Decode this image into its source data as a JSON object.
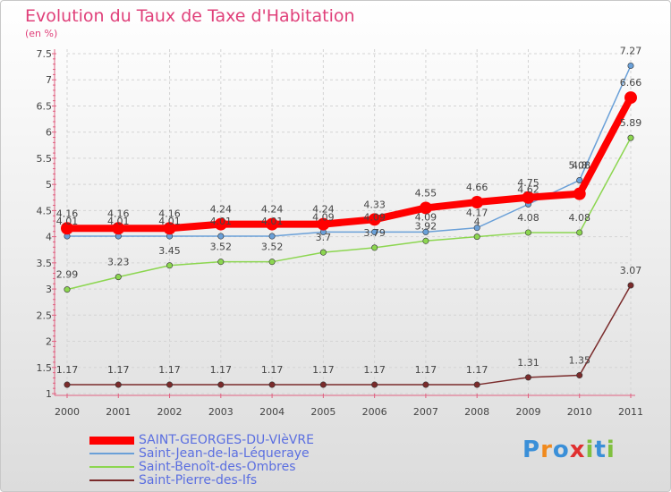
{
  "chart_data": {
    "type": "line",
    "title": "Evolution du Taux de Taxe d'Habitation",
    "subtitle": "(en %)",
    "x": [
      "2000",
      "2001",
      "2002",
      "2003",
      "2004",
      "2005",
      "2006",
      "2007",
      "2008",
      "2009",
      "2010",
      "2011"
    ],
    "ylim": [
      1,
      7.5
    ],
    "yticks": [
      "1",
      "1.5",
      "2",
      "2.5",
      "3",
      "3.5",
      "4",
      "4.5",
      "5",
      "5.5",
      "6",
      "6.5",
      "7",
      "7.5"
    ],
    "grid": true,
    "legend": "bottom-left",
    "series": [
      {
        "name": "SAINT-GEORGES-DU-VIèVRE",
        "color": "#ff0000",
        "values": [
          4.16,
          4.16,
          4.16,
          4.24,
          4.24,
          4.24,
          4.33,
          4.55,
          4.66,
          4.75,
          4.82,
          6.66
        ],
        "labels": [
          "4.16",
          "4.16",
          "4.16",
          "4.24",
          "4.24",
          "4.24",
          "4.33",
          "4.55",
          "4.66",
          "4.75",
          "",
          "6.66"
        ]
      },
      {
        "name": "Saint-Jean-de-la-Léqueraye",
        "color": "#6aa0d8",
        "values": [
          4.01,
          4.01,
          4.01,
          4.01,
          4.01,
          4.09,
          4.09,
          4.09,
          4.17,
          4.62,
          5.08,
          7.27
        ],
        "labels": [
          "4.01",
          "4.01",
          "4.01",
          "4.01",
          "4.01",
          "4.09",
          "4.09",
          "4.09",
          "4.17",
          "4.62",
          "5.08",
          "7.27"
        ]
      },
      {
        "name": "Saint-Benoît-des-Ombres",
        "color": "#8cd650",
        "values": [
          2.99,
          3.23,
          3.45,
          3.52,
          3.52,
          3.7,
          3.79,
          3.92,
          4,
          4.08,
          4.08,
          5.89
        ],
        "labels": [
          "2.99",
          "3.23",
          "3.45",
          "3.52",
          "3.52",
          "3.7",
          "3.79",
          "3.92",
          "4",
          "4.08",
          "4.08",
          "5.89"
        ]
      },
      {
        "name": "Saint-Pierre-des-Ifs",
        "color": "#7a2b2b",
        "values": [
          1.17,
          1.17,
          1.17,
          1.17,
          1.17,
          1.17,
          1.17,
          1.17,
          1.17,
          1.31,
          1.35,
          3.07
        ],
        "labels": [
          "1.17",
          "1.17",
          "1.17",
          "1.17",
          "1.17",
          "1.17",
          "1.17",
          "1.17",
          "1.17",
          "1.31",
          "1.35",
          "3.07"
        ]
      }
    ],
    "extra_labels": [
      {
        "series": 1,
        "index": 10,
        "text": "4.8"
      }
    ]
  },
  "logo": {
    "text": "Proxiti",
    "letters": [
      "P",
      "r",
      "o",
      "x",
      "i",
      "t",
      "i"
    ],
    "colors": [
      "#3a8fd8",
      "#f08a1e",
      "#3a8fd8",
      "#e03030",
      "#80c040",
      "#3a8fd8",
      "#80c040"
    ]
  }
}
